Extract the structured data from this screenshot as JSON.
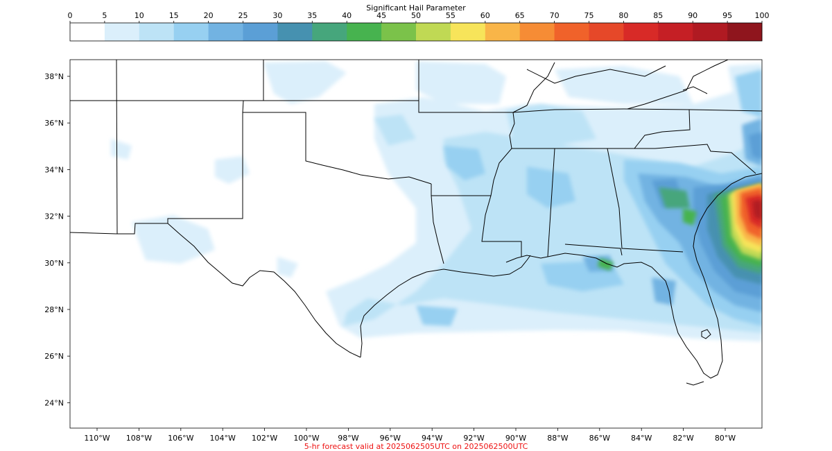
{
  "colorbar": {
    "title": "Significant Hail Parameter",
    "ticks": [
      "0",
      "5",
      "10",
      "15",
      "20",
      "25",
      "30",
      "35",
      "40",
      "45",
      "50",
      "55",
      "60",
      "65",
      "70",
      "75",
      "80",
      "85",
      "90",
      "95",
      "100"
    ],
    "colors": [
      "#ffffff",
      "#dbeffb",
      "#bde3f6",
      "#97d0f1",
      "#72b3e2",
      "#5b9fd6",
      "#4691b0",
      "#46a67c",
      "#47b34f",
      "#7bc24a",
      "#c0d954",
      "#f7e45a",
      "#f9b548",
      "#f68c35",
      "#f0622a",
      "#e64829",
      "#d82a27",
      "#c51f25",
      "#b01a22",
      "#8f151d"
    ]
  },
  "map": {
    "lat_labels": [
      "38°N",
      "36°N",
      "34°N",
      "32°N",
      "30°N",
      "28°N",
      "26°N",
      "24°N"
    ],
    "lon_labels": [
      "110°W",
      "108°W",
      "106°W",
      "104°W",
      "102°W",
      "100°W",
      "98°W",
      "96°W",
      "94°W",
      "92°W",
      "90°W",
      "88°W",
      "86°W",
      "84°W",
      "82°W",
      "80°W"
    ],
    "lat_values": [
      38,
      36,
      34,
      32,
      30,
      28,
      26,
      24
    ],
    "lon_values": [
      -110,
      -108,
      -106,
      -104,
      -102,
      -100,
      -98,
      -96,
      -94,
      -92,
      -90,
      -88,
      -86,
      -84,
      -82,
      -80
    ]
  },
  "caption": {
    "text": "5-hr forecast valid at 2025062505UTC on 2025062500UTC",
    "color": "#ee1111"
  }
}
